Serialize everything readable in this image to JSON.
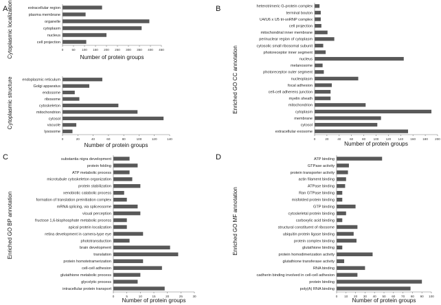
{
  "panel_labels": [
    "A",
    "B",
    "C",
    "D"
  ],
  "group_labels": {
    "A": "Cytoplasmic localization",
    "A2": "Cytoplasmic structure",
    "B": "Enriched GO CC annotation",
    "C": "Enriched GO BP annotation",
    "D": "Enriched GO MF annotation"
  },
  "chart_data": [
    {
      "id": "A1",
      "type": "bar",
      "orientation": "horizontal",
      "xlabel": "Number of protein groups",
      "xlim": [
        0,
        450
      ],
      "xticks": [
        0,
        50,
        100,
        150,
        200,
        250,
        300,
        350,
        400,
        450
      ],
      "categories": [
        "extracellular region",
        "plasma membrane",
        "organelle",
        "cytoplasm",
        "nucleus",
        "cell projection"
      ],
      "values": [
        180,
        105,
        395,
        360,
        200,
        108
      ]
    },
    {
      "id": "A2",
      "type": "bar",
      "orientation": "horizontal",
      "xlabel": "Number of protein groups",
      "xlim": [
        0,
        140
      ],
      "xticks": [
        0,
        20,
        40,
        60,
        80,
        100,
        120,
        140
      ],
      "categories": [
        "endoplasmic reticulum",
        "Golgi apparatus",
        "endosome",
        "ribosome",
        "cytoskeleton",
        "mitochondrion",
        "cytosol",
        "vacuole",
        "lysosome"
      ],
      "values": [
        52,
        35,
        16,
        22,
        73,
        98,
        132,
        18,
        13
      ]
    },
    {
      "id": "B",
      "type": "bar",
      "orientation": "horizontal",
      "xlabel": "Number of protein groups",
      "xlim": [
        0,
        200
      ],
      "xticks": [
        0,
        20,
        40,
        60,
        80,
        100,
        120,
        140,
        160,
        180,
        200
      ],
      "categories": [
        "heterotrimeric G-protein complex",
        "terminal bouton",
        "U4/U6 x U5 tri-snRNP complex",
        "cell projection",
        "mitochondrial inner membrane",
        "perinuclear region of cytoplasm",
        "cytosolic small ribosomal subunit",
        "photoreceptor inner segment",
        "nucleus",
        "melanosome",
        "photoreceptor outer segment",
        "nucleoplasm",
        "focal adhesion",
        "cell-cell adherens junction",
        "myelin sheath",
        "mitochondrion",
        "cytoplasm",
        "membrane",
        "cytosol",
        "extracellular exosome"
      ],
      "values": [
        8,
        10,
        10,
        11,
        21,
        32,
        14,
        18,
        145,
        13,
        15,
        71,
        28,
        26,
        26,
        83,
        190,
        108,
        102,
        152
      ]
    },
    {
      "id": "C",
      "type": "bar",
      "orientation": "horizontal",
      "xlabel": "Number of protein groups",
      "xlim": [
        0,
        30
      ],
      "xticks": [
        0,
        5,
        10,
        15,
        20,
        25,
        30
      ],
      "categories": [
        "substantia nigra development",
        "protein folding",
        "ATP metabolic process",
        "microtubule cytoskeleton organization",
        "protein stabilization",
        "xenobiotic catabolic process",
        "formation of translation preinitiation complex",
        "mRNA splicing, via spliceosome",
        "visual perception",
        "fructose 1,6-bisphosphate metabolic process",
        "apical protein localization",
        "retina development in camera-type eye",
        "phototransduction",
        "brain development",
        "translation",
        "protein homotetramerization",
        "cell-cell adhesion",
        "glutathione metabolic process",
        "glycolytic process",
        "intracellular protein transport"
      ],
      "values": [
        6,
        9,
        6,
        7,
        10,
        4,
        5,
        9,
        10,
        5,
        5,
        11,
        6,
        21,
        24,
        11,
        18,
        10,
        9,
        19
      ]
    },
    {
      "id": "D",
      "type": "bar",
      "orientation": "horizontal",
      "xlabel": "Number of protein groups",
      "xlim": [
        0,
        100
      ],
      "xticks": [
        0,
        10,
        20,
        30,
        40,
        50,
        60,
        70,
        80,
        90,
        100
      ],
      "categories": [
        "ATP binding",
        "GTPase activity",
        "protein transporter activity",
        "actin filament binding",
        "ATPase binding",
        "Ran GTPase binding",
        "misfolded protein binding",
        "GTP binding",
        "cytoskeletal protein binding",
        "carboxylic acid binding",
        "structural constituent of ribosome",
        "ubiquitin protein ligase binding",
        "protein complex binding",
        "glutathione binding",
        "protein homodimerization activity",
        "glutathione transferase activity",
        "RNA binding",
        "cadherin binding involved in cell-cell adhesion",
        "protein binding",
        "poly(A) RNA binding"
      ],
      "values": [
        48,
        13,
        12,
        10,
        9,
        6,
        6,
        20,
        10,
        6,
        22,
        18,
        21,
        6,
        38,
        8,
        30,
        22,
        90,
        78
      ]
    }
  ]
}
